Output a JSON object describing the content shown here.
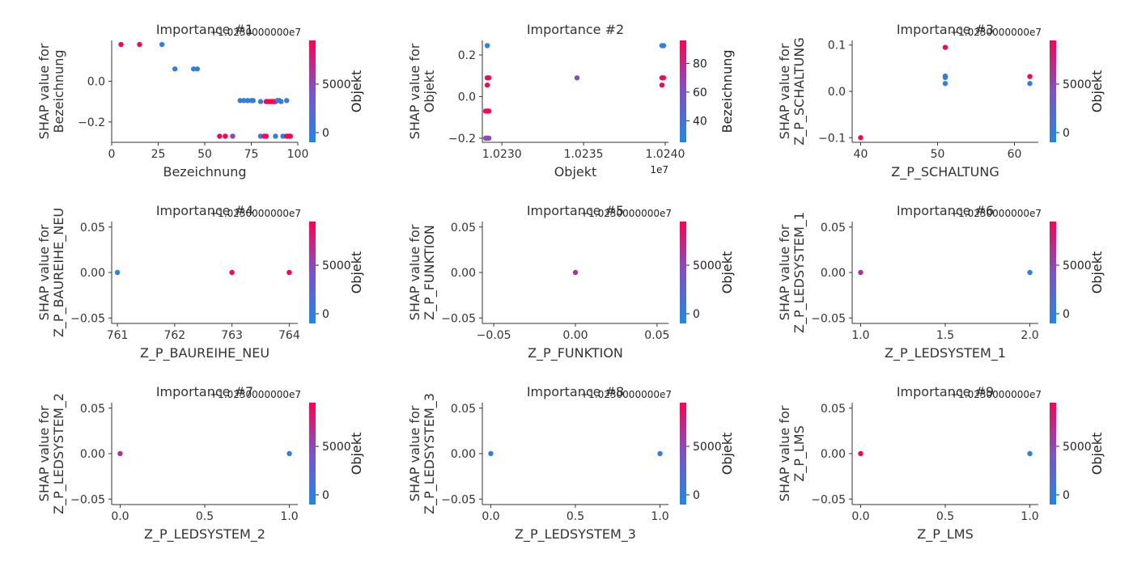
{
  "chart_data": [
    {
      "type": "scatter",
      "title": "Importance #1",
      "xlabel": "Bezeichnung",
      "ylabel": [
        "SHAP value for",
        "Bezeichnung"
      ],
      "offset_text": "+1.0230000000e7",
      "x_offset_text": "",
      "xlim": [
        0,
        100
      ],
      "ylim": [
        -0.3,
        0.2
      ],
      "xticks": [
        0,
        25,
        50,
        75,
        100
      ],
      "xtick_labels": [
        "0",
        "25",
        "50",
        "75",
        "100"
      ],
      "yticks": [
        0.0,
        -0.2
      ],
      "ytick_labels": [
        "0.0",
        "−0.2"
      ],
      "colorbar": {
        "label": "Objekt",
        "range": [
          -1000,
          9500
        ],
        "ticks": [
          0,
          5000
        ],
        "tick_labels": [
          "0",
          "5000"
        ]
      },
      "points": [
        {
          "x": 5,
          "y": 0.18,
          "c": 9500
        },
        {
          "x": 15,
          "y": 0.18,
          "c": 9000
        },
        {
          "x": 27,
          "y": 0.18,
          "c": 0
        },
        {
          "x": 34,
          "y": 0.06,
          "c": 0
        },
        {
          "x": 44,
          "y": 0.06,
          "c": 0
        },
        {
          "x": 46,
          "y": 0.06,
          "c": 0
        },
        {
          "x": 69,
          "y": -0.095,
          "c": 0
        },
        {
          "x": 71,
          "y": -0.095,
          "c": 0
        },
        {
          "x": 73,
          "y": -0.095,
          "c": 0
        },
        {
          "x": 75,
          "y": -0.095,
          "c": 0
        },
        {
          "x": 76,
          "y": -0.095,
          "c": 0
        },
        {
          "x": 80,
          "y": -0.1,
          "c": 0
        },
        {
          "x": 83,
          "y": -0.1,
          "c": 9500
        },
        {
          "x": 84,
          "y": -0.1,
          "c": 9500
        },
        {
          "x": 85,
          "y": -0.1,
          "c": 9500
        },
        {
          "x": 86,
          "y": -0.1,
          "c": 9500
        },
        {
          "x": 87,
          "y": -0.1,
          "c": 9500
        },
        {
          "x": 88,
          "y": -0.1,
          "c": 9500
        },
        {
          "x": 89,
          "y": -0.095,
          "c": 0
        },
        {
          "x": 90,
          "y": -0.095,
          "c": 0
        },
        {
          "x": 91,
          "y": -0.1,
          "c": 0
        },
        {
          "x": 94,
          "y": -0.095,
          "c": 0
        },
        {
          "x": 58,
          "y": -0.27,
          "c": 9500
        },
        {
          "x": 61,
          "y": -0.27,
          "c": 9500
        },
        {
          "x": 65,
          "y": -0.27,
          "c": 5000
        },
        {
          "x": 80,
          "y": -0.27,
          "c": 0
        },
        {
          "x": 82,
          "y": -0.27,
          "c": 9500
        },
        {
          "x": 83,
          "y": -0.27,
          "c": 9500
        },
        {
          "x": 88,
          "y": -0.27,
          "c": 0
        },
        {
          "x": 92,
          "y": -0.27,
          "c": 0
        },
        {
          "x": 94,
          "y": -0.27,
          "c": 9500
        },
        {
          "x": 95,
          "y": -0.27,
          "c": 9500
        },
        {
          "x": 96,
          "y": -0.27,
          "c": 9500
        }
      ]
    },
    {
      "type": "scatter",
      "title": "Importance #2",
      "xlabel": "Objekt",
      "ylabel": [
        "SHAP value for",
        "Objekt"
      ],
      "offset_text": "",
      "x_offset_text": "1e7",
      "xlim": [
        1.02288,
        1.02402
      ],
      "ylim": [
        -0.22,
        0.27
      ],
      "xticks": [
        1.023,
        1.0235,
        1.024
      ],
      "xtick_labels": [
        "1.0230",
        "1.0235",
        "1.0240"
      ],
      "yticks": [
        0.2,
        0.0,
        -0.2
      ],
      "ytick_labels": [
        "0.2",
        "0.0",
        "−0.2"
      ],
      "colorbar": {
        "label": "Bezeichnung",
        "range": [
          25,
          96
        ],
        "ticks": [
          40,
          60,
          80
        ],
        "tick_labels": [
          "40",
          "60",
          "80"
        ]
      },
      "points": [
        {
          "x": 1.02291,
          "y": 0.245,
          "c": 27
        },
        {
          "x": 1.02291,
          "y": 0.09,
          "c": 92
        },
        {
          "x": 1.02292,
          "y": 0.09,
          "c": 92
        },
        {
          "x": 1.02291,
          "y": 0.055,
          "c": 94
        },
        {
          "x": 1.0229,
          "y": -0.07,
          "c": 94
        },
        {
          "x": 1.02291,
          "y": -0.07,
          "c": 94
        },
        {
          "x": 1.02292,
          "y": -0.07,
          "c": 94
        },
        {
          "x": 1.0229,
          "y": -0.2,
          "c": 65
        },
        {
          "x": 1.02291,
          "y": -0.2,
          "c": 65
        },
        {
          "x": 1.02292,
          "y": -0.2,
          "c": 65
        },
        {
          "x": 1.02346,
          "y": 0.09,
          "c": 65
        },
        {
          "x": 1.02398,
          "y": 0.245,
          "c": 30
        },
        {
          "x": 1.02399,
          "y": 0.245,
          "c": 30
        },
        {
          "x": 1.02398,
          "y": 0.09,
          "c": 92
        },
        {
          "x": 1.02399,
          "y": 0.09,
          "c": 92
        },
        {
          "x": 1.02398,
          "y": 0.055,
          "c": 94
        }
      ]
    },
    {
      "type": "scatter",
      "title": "Importance #3",
      "xlabel": "Z_P_SCHALTUNG",
      "ylabel": [
        "SHAP value for",
        "Z_P_SCHALTUNG"
      ],
      "offset_text": "+1.0230000000e7",
      "x_offset_text": "",
      "xlim": [
        38.9,
        63.1
      ],
      "ylim": [
        -0.11,
        0.11
      ],
      "xticks": [
        40,
        50,
        60
      ],
      "xtick_labels": [
        "40",
        "50",
        "60"
      ],
      "yticks": [
        0.1,
        0.0,
        -0.1
      ],
      "ytick_labels": [
        "0.1",
        "0.0",
        "−0.1"
      ],
      "colorbar": {
        "label": "Objekt",
        "range": [
          -1000,
          9500
        ],
        "ticks": [
          0,
          5000
        ],
        "tick_labels": [
          "0",
          "5000"
        ]
      },
      "points": [
        {
          "x": 40,
          "y": -0.1,
          "c": 9500
        },
        {
          "x": 51,
          "y": 0.095,
          "c": 9500
        },
        {
          "x": 51,
          "y": 0.033,
          "c": 0
        },
        {
          "x": 51,
          "y": 0.03,
          "c": 0
        },
        {
          "x": 51,
          "y": 0.017,
          "c": 0
        },
        {
          "x": 62,
          "y": 0.032,
          "c": 9500
        },
        {
          "x": 62,
          "y": 0.017,
          "c": 0
        }
      ]
    },
    {
      "type": "scatter",
      "title": "Importance #4",
      "xlabel": "Z_P_BAUREIHE_NEU",
      "ylabel": [
        "SHAP value for",
        "Z_P_BAUREIHE_NEU"
      ],
      "offset_text": "+1.0230000000e7",
      "x_offset_text": "",
      "xlim": [
        760.9,
        764.15
      ],
      "ylim": [
        -0.056,
        0.056
      ],
      "xticks": [
        761,
        762,
        763,
        764
      ],
      "xtick_labels": [
        "761",
        "762",
        "763",
        "764"
      ],
      "yticks": [
        0.05,
        0.0,
        -0.05
      ],
      "ytick_labels": [
        "0.05",
        "0.00",
        "−0.05"
      ],
      "colorbar": {
        "label": "Objekt",
        "range": [
          -1000,
          9500
        ],
        "ticks": [
          0,
          5000
        ],
        "tick_labels": [
          "0",
          "5000"
        ]
      },
      "points": [
        {
          "x": 761,
          "y": 0.0,
          "c": 0
        },
        {
          "x": 763,
          "y": 0.0,
          "c": 9500
        },
        {
          "x": 764,
          "y": 0.0,
          "c": 9500
        }
      ]
    },
    {
      "type": "scatter",
      "title": "Importance #5",
      "xlabel": "Z_P_FUNKTION",
      "ylabel": [
        "SHAP value for",
        "Z_P_FUNKTION"
      ],
      "offset_text": "+1.0230000000e7",
      "x_offset_text": "",
      "xlim": [
        -0.057,
        0.057
      ],
      "ylim": [
        -0.056,
        0.056
      ],
      "xticks": [
        -0.05,
        0.0,
        0.05
      ],
      "xtick_labels": [
        "−0.05",
        "0.00",
        "0.05"
      ],
      "yticks": [
        0.05,
        0.0,
        -0.05
      ],
      "ytick_labels": [
        "0.05",
        "0.00",
        "−0.05"
      ],
      "colorbar": {
        "label": "Objekt",
        "range": [
          -1000,
          9500
        ],
        "ticks": [
          0,
          5000
        ],
        "tick_labels": [
          "0",
          "5000"
        ]
      },
      "points": [
        {
          "x": 0.0,
          "y": 0.0,
          "c": 6500
        }
      ]
    },
    {
      "type": "scatter",
      "title": "Importance #6",
      "xlabel": "Z_P_LEDSYSTEM_1",
      "ylabel": [
        "SHAP value for",
        "Z_P_LEDSYSTEM_1"
      ],
      "offset_text": "+1.0230000000e7",
      "x_offset_text": "",
      "xlim": [
        0.95,
        2.05
      ],
      "ylim": [
        -0.056,
        0.056
      ],
      "xticks": [
        1.0,
        1.5,
        2.0
      ],
      "xtick_labels": [
        "1.0",
        "1.5",
        "2.0"
      ],
      "yticks": [
        0.05,
        0.0,
        -0.05
      ],
      "ytick_labels": [
        "0.05",
        "0.00",
        "−0.05"
      ],
      "colorbar": {
        "label": "Objekt",
        "range": [
          -1000,
          9500
        ],
        "ticks": [
          0,
          5000
        ],
        "tick_labels": [
          "0",
          "5000"
        ]
      },
      "points": [
        {
          "x": 1.0,
          "y": 0.0,
          "c": 6500
        },
        {
          "x": 2.0,
          "y": 0.0,
          "c": 0
        }
      ]
    },
    {
      "type": "scatter",
      "title": "Importance #7",
      "xlabel": "Z_P_LEDSYSTEM_2",
      "ylabel": [
        "SHAP value for",
        "Z_P_LEDSYSTEM_2"
      ],
      "offset_text": "+1.0230000000e7",
      "x_offset_text": "",
      "xlim": [
        -0.05,
        1.05
      ],
      "ylim": [
        -0.056,
        0.056
      ],
      "xticks": [
        0.0,
        0.5,
        1.0
      ],
      "xtick_labels": [
        "0.0",
        "0.5",
        "1.0"
      ],
      "yticks": [
        0.05,
        0.0,
        -0.05
      ],
      "ytick_labels": [
        "0.05",
        "0.00",
        "−0.05"
      ],
      "colorbar": {
        "label": "Objekt",
        "range": [
          -1000,
          9500
        ],
        "ticks": [
          0,
          5000
        ],
        "tick_labels": [
          "0",
          "5000"
        ]
      },
      "points": [
        {
          "x": 0.0,
          "y": 0.0,
          "c": 6500
        },
        {
          "x": 1.0,
          "y": 0.0,
          "c": 0
        }
      ]
    },
    {
      "type": "scatter",
      "title": "Importance #8",
      "xlabel": "Z_P_LEDSYSTEM_3",
      "ylabel": [
        "SHAP value for",
        "Z_P_LEDSYSTEM_3"
      ],
      "offset_text": "+1.0230000000e7",
      "x_offset_text": "",
      "xlim": [
        -0.05,
        1.05
      ],
      "ylim": [
        -0.056,
        0.056
      ],
      "xticks": [
        0.0,
        0.5,
        1.0
      ],
      "xtick_labels": [
        "0.0",
        "0.5",
        "1.0"
      ],
      "yticks": [
        0.05,
        0.0,
        -0.05
      ],
      "ytick_labels": [
        "0.05",
        "0.00",
        "−0.05"
      ],
      "colorbar": {
        "label": "Objekt",
        "range": [
          -1000,
          9500
        ],
        "ticks": [
          0,
          5000
        ],
        "tick_labels": [
          "0",
          "5000"
        ]
      },
      "points": [
        {
          "x": 0.0,
          "y": 0.0,
          "c": 0
        },
        {
          "x": 1.0,
          "y": 0.0,
          "c": 0
        }
      ]
    },
    {
      "type": "scatter",
      "title": "Importance #9",
      "xlabel": "Z_P_LMS",
      "ylabel": [
        "SHAP value for",
        "Z_P_LMS"
      ],
      "offset_text": "+1.0230000000e7",
      "x_offset_text": "",
      "xlim": [
        -0.05,
        1.05
      ],
      "ylim": [
        -0.056,
        0.056
      ],
      "xticks": [
        0.0,
        0.5,
        1.0
      ],
      "xtick_labels": [
        "0.0",
        "0.5",
        "1.0"
      ],
      "yticks": [
        0.05,
        0.0,
        -0.05
      ],
      "ytick_labels": [
        "0.05",
        "0.00",
        "−0.05"
      ],
      "colorbar": {
        "label": "Objekt",
        "range": [
          -1000,
          9500
        ],
        "ticks": [
          0,
          5000
        ],
        "tick_labels": [
          "0",
          "5000"
        ]
      },
      "points": [
        {
          "x": 0.0,
          "y": 0.0,
          "c": 9500
        },
        {
          "x": 1.0,
          "y": 0.0,
          "c": 0
        }
      ]
    }
  ],
  "colors": {
    "low": "#1e88e5",
    "mid": "#7c52c8",
    "high": "#ff0052",
    "axis": "#333333"
  }
}
